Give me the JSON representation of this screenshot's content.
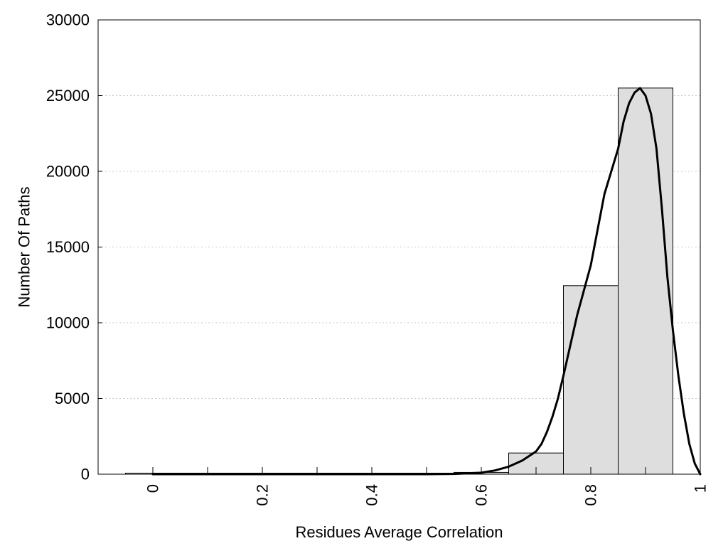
{
  "chart_data": {
    "type": "bar",
    "xlabel": "Residues Average Correlation",
    "ylabel": "Number Of Paths",
    "xlim": [
      -0.1,
      1.0
    ],
    "ylim": [
      0,
      30000
    ],
    "x_ticks": [
      "0",
      "0.2",
      "0.4",
      "0.6",
      "0.8",
      "1"
    ],
    "x_tick_values": [
      0,
      0.2,
      0.4,
      0.6,
      0.8,
      1.0
    ],
    "y_ticks": [
      "0",
      "5000",
      "10000",
      "15000",
      "20000",
      "25000",
      "30000"
    ],
    "y_tick_values": [
      0,
      5000,
      10000,
      15000,
      20000,
      25000,
      30000
    ],
    "grid": "horizontal dotted",
    "bin_width": 0.1,
    "bins": [
      {
        "center": 0.0,
        "value": 0
      },
      {
        "center": 0.1,
        "value": 0
      },
      {
        "center": 0.2,
        "value": 0
      },
      {
        "center": 0.3,
        "value": 0
      },
      {
        "center": 0.4,
        "value": 0
      },
      {
        "center": 0.5,
        "value": 0
      },
      {
        "center": 0.6,
        "value": 120
      },
      {
        "center": 0.7,
        "value": 1400
      },
      {
        "center": 0.8,
        "value": 12450
      },
      {
        "center": 0.9,
        "value": 25500
      }
    ],
    "fit_curve": {
      "x": [
        0.0,
        0.1,
        0.2,
        0.3,
        0.4,
        0.5,
        0.55,
        0.6,
        0.625,
        0.65,
        0.675,
        0.7,
        0.71,
        0.72,
        0.73,
        0.74,
        0.75,
        0.775,
        0.8,
        0.825,
        0.85,
        0.86,
        0.87,
        0.88,
        0.89,
        0.9,
        0.91,
        0.92,
        0.93,
        0.94,
        0.95,
        0.96,
        0.97,
        0.98,
        0.99,
        1.0
      ],
      "y": [
        0,
        0,
        0,
        0,
        0,
        0,
        20,
        100,
        250,
        500,
        900,
        1500,
        2000,
        2800,
        3800,
        5000,
        6500,
        10500,
        13800,
        18500,
        21500,
        23300,
        24500,
        25200,
        25500,
        25000,
        23800,
        21500,
        17500,
        13000,
        9500,
        6500,
        4000,
        2000,
        700,
        0
      ]
    },
    "colors": {
      "bar_fill": "#dedede",
      "bar_stroke": "#000000",
      "curve": "#000000",
      "grid": "#c8c8c8"
    }
  }
}
